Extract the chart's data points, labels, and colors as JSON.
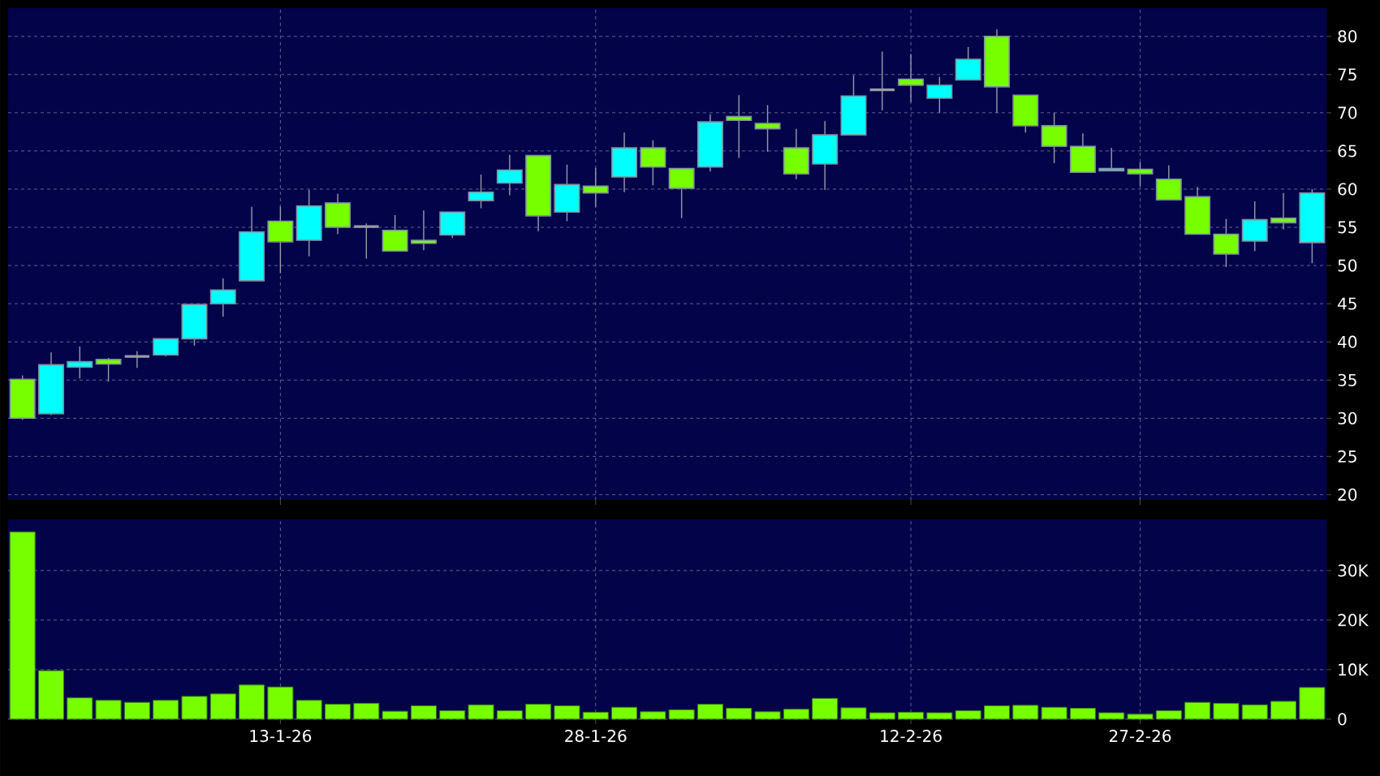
{
  "chart_data": [
    {
      "type": "candlestick",
      "categories": [
        null,
        null,
        null,
        null,
        null,
        null,
        null,
        null,
        null,
        null,
        null,
        null,
        null,
        null,
        null,
        null,
        null,
        null,
        null,
        null,
        null,
        null,
        null,
        null,
        null,
        null,
        null,
        null,
        null,
        null,
        null,
        null,
        null,
        null,
        null,
        null,
        null,
        null,
        null,
        null,
        null,
        null,
        null,
        null,
        null,
        null
      ],
      "ohlc": [
        [
          35.1,
          35.6,
          29.8,
          30
        ],
        [
          30.6,
          38.6,
          30.4,
          37
        ],
        [
          36.7,
          39.4,
          35.2,
          37.4
        ],
        [
          37.7,
          37.9,
          34.8,
          37.1
        ],
        [
          38.1,
          38.8,
          36.6,
          38.1
        ],
        [
          38.3,
          40.4,
          38.1,
          40.4
        ],
        [
          40.4,
          44.9,
          39.5,
          44.9
        ],
        [
          45,
          48.3,
          43.3,
          46.8
        ],
        [
          48,
          57.7,
          48,
          54.4
        ],
        [
          55.8,
          57.7,
          49,
          53.1
        ],
        [
          53.3,
          59.9,
          51.2,
          57.8
        ],
        [
          58.2,
          59.4,
          54.1,
          55
        ],
        [
          55.1,
          55.5,
          50.9,
          55.1
        ],
        [
          54.6,
          56.6,
          51.9,
          51.9
        ],
        [
          53.3,
          57.2,
          52,
          52.9
        ],
        [
          54,
          57,
          53.6,
          57
        ],
        [
          58.5,
          61.9,
          57.5,
          59.6
        ],
        [
          60.8,
          64.5,
          59.2,
          62.5
        ],
        [
          64.4,
          64.4,
          54.5,
          56.5
        ],
        [
          57,
          63.2,
          55.8,
          60.6
        ],
        [
          60.4,
          62.8,
          57.7,
          59.5
        ],
        [
          61.6,
          67.4,
          59.6,
          65.4
        ],
        [
          65.4,
          66.4,
          60.5,
          62.9
        ],
        [
          62.7,
          62.7,
          56.2,
          60.1
        ],
        [
          62.9,
          69.8,
          62.3,
          68.8
        ],
        [
          69.5,
          72.3,
          64.1,
          69
        ],
        [
          68.6,
          71,
          64.9,
          67.9
        ],
        [
          65.4,
          67.9,
          61.3,
          62
        ],
        [
          63.3,
          68.9,
          59.9,
          67.1
        ],
        [
          67.1,
          74.9,
          67.1,
          72.2
        ],
        [
          73,
          78,
          70.3,
          73
        ],
        [
          74.4,
          77.7,
          71.4,
          73.6
        ],
        [
          71.9,
          74.7,
          70,
          73.6
        ],
        [
          74.3,
          78.6,
          74.3,
          77
        ],
        [
          80,
          80.9,
          70,
          73.4
        ],
        [
          72.3,
          72.3,
          67.4,
          68.3
        ],
        [
          68.3,
          70,
          63.4,
          65.6
        ],
        [
          65.6,
          67.3,
          62.2,
          62.2
        ],
        [
          62.4,
          65.4,
          62.4,
          62.7
        ],
        [
          62.6,
          63.5,
          60.4,
          62
        ],
        [
          61.3,
          63.1,
          58.6,
          58.6
        ],
        [
          59,
          60.3,
          54.1,
          54.1
        ],
        [
          54.1,
          56.1,
          49.8,
          51.5
        ],
        [
          53.2,
          58.4,
          51.9,
          56
        ],
        [
          56.2,
          59.5,
          54.7,
          55.6
        ],
        [
          53,
          60,
          50.3,
          59.5
        ]
      ],
      "colors": [
        "#77ff00",
        "#00ffff",
        "#00ffff",
        "#77ff00",
        "#9a9aa8",
        "#00ffff",
        "#00ffff",
        "#00ffff",
        "#00ffff",
        "#77ff00",
        "#00ffff",
        "#77ff00",
        "#9a9aa8",
        "#77ff00",
        "#77ff00",
        "#00ffff",
        "#00ffff",
        "#00ffff",
        "#77ff00",
        "#00ffff",
        "#77ff00",
        "#00ffff",
        "#77ff00",
        "#77ff00",
        "#00ffff",
        "#77ff00",
        "#77ff00",
        "#77ff00",
        "#00ffff",
        "#00ffff",
        "#9a9aa8",
        "#77ff00",
        "#00ffff",
        "#00ffff",
        "#77ff00",
        "#77ff00",
        "#77ff00",
        "#77ff00",
        "#66ccee",
        "#77ff00",
        "#77ff00",
        "#77ff00",
        "#77ff00",
        "#00ffff",
        "#77ff00",
        "#00ffff"
      ],
      "ylim": [
        19.3,
        83.7
      ],
      "yticks": [
        20,
        25,
        30,
        35,
        40,
        45,
        50,
        55,
        60,
        65,
        70,
        75,
        80
      ],
      "grid": true,
      "tick_labels": "y"
    },
    {
      "type": "bar",
      "categories": [
        null,
        null,
        null,
        null,
        null,
        null,
        null,
        null,
        null,
        "13-1-26",
        null,
        null,
        null,
        null,
        null,
        null,
        null,
        null,
        null,
        null,
        "28-1-26",
        null,
        null,
        null,
        null,
        null,
        null,
        null,
        null,
        null,
        null,
        "12-2-26",
        null,
        null,
        null,
        null,
        null,
        null,
        null,
        "27-2-26",
        null,
        null,
        null,
        null,
        null,
        null
      ],
      "values": [
        37800,
        9800,
        4300,
        3800,
        3400,
        3800,
        4600,
        5100,
        6900,
        6500,
        3800,
        3000,
        3200,
        1600,
        2700,
        1700,
        2900,
        1700,
        3000,
        2700,
        1400,
        2400,
        1500,
        1900,
        3000,
        2200,
        1500,
        2000,
        4200,
        2300,
        1300,
        1400,
        1300,
        1700,
        2700,
        2800,
        2400,
        2200,
        1300,
        1000,
        1700,
        3400,
        3200,
        2900,
        3600,
        6400
      ],
      "color": "#77ff00",
      "ylim": [
        0,
        40300
      ],
      "yticks": [
        {
          "value": 0,
          "label": "0"
        },
        {
          "value": 10000,
          "label": "10K"
        },
        {
          "value": 20000,
          "label": "20K"
        },
        {
          "value": 30000,
          "label": "30K"
        }
      ],
      "grid": true
    }
  ]
}
